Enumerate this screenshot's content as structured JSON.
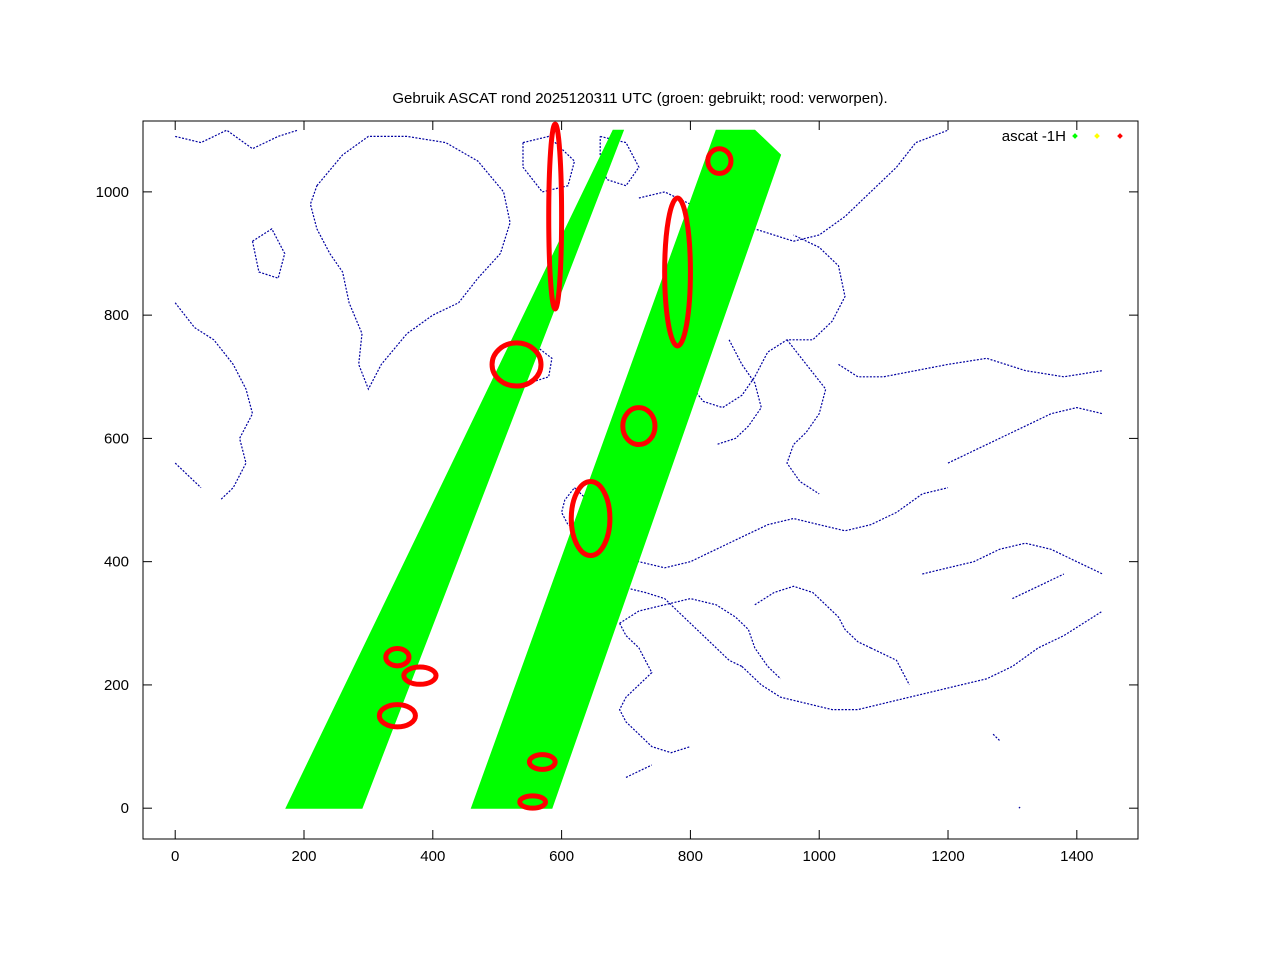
{
  "chart_data": {
    "type": "scatter",
    "title": "Gebruik ASCAT rond 2025120311 UTC (groen: gebruikt; rood: verworpen).",
    "xlabel": "",
    "ylabel": "",
    "xlim": [
      -50,
      1495
    ],
    "ylim": [
      -50,
      1115
    ],
    "x_ticks": [
      0,
      200,
      400,
      600,
      800,
      1000,
      1200,
      1400
    ],
    "y_ticks": [
      0,
      200,
      400,
      600,
      800,
      1000
    ],
    "grid": false,
    "legend_position": "top-right",
    "legend": {
      "label": "ascat -1H"
    },
    "colors": {
      "used": "#00ff00",
      "flagged": "#ffff00",
      "rejected": "#ff0000",
      "coast": "#0000a0",
      "axis": "#000000"
    },
    "series": [
      {
        "name": "ascat -1H",
        "role": "used",
        "swaths": [
          {
            "corners": [
              [
                172,
                0
              ],
              [
                290,
                0
              ],
              [
                696,
                1100
              ],
              [
                680,
                1100
              ]
            ]
          },
          {
            "corners": [
              [
                460,
                0
              ],
              [
                585,
                0
              ],
              [
                940,
                1060
              ],
              [
                900,
                1100
              ],
              [
                840,
                1100
              ]
            ]
          }
        ]
      },
      {
        "role": "flagged",
        "points": []
      },
      {
        "role": "rejected",
        "clusters": [
          {
            "cx": 590,
            "cy": 960,
            "rx": 10,
            "ry": 150
          },
          {
            "cx": 530,
            "cy": 720,
            "rx": 38,
            "ry": 35
          },
          {
            "cx": 345,
            "cy": 245,
            "rx": 18,
            "ry": 14
          },
          {
            "cx": 380,
            "cy": 215,
            "rx": 25,
            "ry": 14
          },
          {
            "cx": 345,
            "cy": 150,
            "rx": 28,
            "ry": 18
          },
          {
            "cx": 570,
            "cy": 75,
            "rx": 20,
            "ry": 12
          },
          {
            "cx": 555,
            "cy": 10,
            "rx": 20,
            "ry": 10
          },
          {
            "cx": 720,
            "cy": 620,
            "rx": 25,
            "ry": 30
          },
          {
            "cx": 645,
            "cy": 470,
            "rx": 30,
            "ry": 60
          },
          {
            "cx": 780,
            "cy": 870,
            "rx": 20,
            "ry": 120
          },
          {
            "cx": 845,
            "cy": 1050,
            "rx": 18,
            "ry": 20
          }
        ]
      }
    ],
    "coastlines": [
      [
        [
          0,
          1090
        ],
        [
          40,
          1080
        ],
        [
          80,
          1100
        ],
        [
          120,
          1070
        ],
        [
          160,
          1090
        ],
        [
          190,
          1100
        ]
      ],
      [
        [
          0,
          820
        ],
        [
          30,
          780
        ],
        [
          60,
          760
        ],
        [
          90,
          720
        ],
        [
          110,
          680
        ],
        [
          120,
          640
        ],
        [
          100,
          600
        ],
        [
          110,
          560
        ],
        [
          90,
          520
        ],
        [
          70,
          500
        ]
      ],
      [
        [
          0,
          560
        ],
        [
          20,
          540
        ],
        [
          40,
          520
        ]
      ],
      [
        [
          220,
          1010
        ],
        [
          260,
          1060
        ],
        [
          300,
          1090
        ],
        [
          360,
          1090
        ],
        [
          420,
          1080
        ],
        [
          470,
          1050
        ],
        [
          510,
          1000
        ],
        [
          520,
          950
        ],
        [
          505,
          900
        ],
        [
          470,
          860
        ],
        [
          440,
          820
        ],
        [
          400,
          800
        ],
        [
          360,
          770
        ],
        [
          320,
          720
        ],
        [
          300,
          680
        ],
        [
          285,
          720
        ],
        [
          290,
          770
        ],
        [
          270,
          820
        ],
        [
          260,
          870
        ],
        [
          240,
          900
        ],
        [
          220,
          940
        ],
        [
          210,
          980
        ],
        [
          220,
          1010
        ]
      ],
      [
        [
          120,
          920
        ],
        [
          150,
          940
        ],
        [
          170,
          900
        ],
        [
          160,
          860
        ],
        [
          130,
          870
        ],
        [
          120,
          920
        ]
      ],
      [
        [
          540,
          1080
        ],
        [
          580,
          1090
        ],
        [
          620,
          1050
        ],
        [
          610,
          1010
        ],
        [
          570,
          1000
        ],
        [
          540,
          1040
        ],
        [
          540,
          1080
        ]
      ],
      [
        [
          660,
          1090
        ],
        [
          700,
          1080
        ],
        [
          720,
          1040
        ],
        [
          700,
          1010
        ],
        [
          670,
          1020
        ],
        [
          660,
          1060
        ],
        [
          660,
          1090
        ]
      ],
      [
        [
          505,
          720
        ],
        [
          520,
          745
        ],
        [
          560,
          750
        ],
        [
          585,
          730
        ],
        [
          580,
          700
        ],
        [
          550,
          690
        ],
        [
          515,
          700
        ],
        [
          505,
          720
        ]
      ],
      [
        [
          720,
          990
        ],
        [
          760,
          1000
        ],
        [
          800,
          980
        ],
        [
          850,
          960
        ],
        [
          900,
          940
        ],
        [
          960,
          920
        ],
        [
          1000,
          930
        ],
        [
          1040,
          960
        ],
        [
          1080,
          1000
        ],
        [
          1120,
          1040
        ],
        [
          1150,
          1080
        ],
        [
          1200,
          1100
        ]
      ],
      [
        [
          780,
          900
        ],
        [
          800,
          860
        ],
        [
          790,
          820
        ],
        [
          780,
          780
        ],
        [
          775,
          740
        ],
        [
          790,
          700
        ],
        [
          820,
          660
        ],
        [
          850,
          650
        ],
        [
          880,
          670
        ],
        [
          900,
          700
        ],
        [
          920,
          740
        ],
        [
          950,
          760
        ],
        [
          990,
          760
        ],
        [
          1020,
          790
        ],
        [
          1040,
          830
        ],
        [
          1030,
          880
        ],
        [
          1000,
          910
        ],
        [
          960,
          930
        ]
      ],
      [
        [
          860,
          760
        ],
        [
          880,
          720
        ],
        [
          900,
          690
        ],
        [
          910,
          650
        ],
        [
          890,
          620
        ],
        [
          870,
          600
        ],
        [
          840,
          590
        ]
      ],
      [
        [
          950,
          760
        ],
        [
          980,
          720
        ],
        [
          1010,
          680
        ],
        [
          1000,
          640
        ],
        [
          980,
          610
        ],
        [
          960,
          590
        ],
        [
          950,
          560
        ],
        [
          970,
          530
        ],
        [
          1000,
          510
        ]
      ],
      [
        [
          1030,
          720
        ],
        [
          1060,
          700
        ],
        [
          1100,
          700
        ],
        [
          1150,
          710
        ],
        [
          1200,
          720
        ],
        [
          1260,
          730
        ],
        [
          1320,
          710
        ],
        [
          1380,
          700
        ],
        [
          1440,
          710
        ]
      ],
      [
        [
          750,
          620
        ],
        [
          745,
          590
        ],
        [
          730,
          560
        ],
        [
          720,
          520
        ],
        [
          715,
          490
        ],
        [
          700,
          470
        ],
        [
          690,
          455
        ]
      ],
      [
        [
          690,
          455
        ],
        [
          700,
          420
        ],
        [
          720,
          400
        ],
        [
          760,
          390
        ],
        [
          800,
          400
        ],
        [
          840,
          420
        ],
        [
          880,
          440
        ],
        [
          920,
          460
        ],
        [
          960,
          470
        ],
        [
          1000,
          460
        ],
        [
          1040,
          450
        ],
        [
          1080,
          460
        ],
        [
          1120,
          480
        ],
        [
          1160,
          510
        ],
        [
          1200,
          520
        ]
      ],
      [
        [
          660,
          560
        ],
        [
          690,
          545
        ],
        [
          700,
          520
        ],
        [
          690,
          500
        ],
        [
          670,
          480
        ],
        [
          650,
          470
        ],
        [
          640,
          490
        ],
        [
          650,
          520
        ],
        [
          660,
          560
        ]
      ],
      [
        [
          620,
          520
        ],
        [
          640,
          500
        ],
        [
          650,
          470
        ],
        [
          630,
          450
        ],
        [
          610,
          460
        ],
        [
          600,
          480
        ],
        [
          605,
          500
        ],
        [
          620,
          520
        ]
      ],
      [
        [
          690,
          455
        ],
        [
          680,
          420
        ],
        [
          675,
          390
        ],
        [
          690,
          360
        ],
        [
          730,
          350
        ],
        [
          760,
          340
        ],
        [
          780,
          320
        ],
        [
          800,
          300
        ],
        [
          820,
          280
        ],
        [
          840,
          260
        ],
        [
          860,
          240
        ],
        [
          880,
          230
        ]
      ],
      [
        [
          690,
          300
        ],
        [
          700,
          280
        ],
        [
          720,
          260
        ],
        [
          730,
          240
        ],
        [
          740,
          220
        ],
        [
          720,
          200
        ],
        [
          700,
          180
        ],
        [
          690,
          160
        ],
        [
          700,
          140
        ],
        [
          720,
          120
        ],
        [
          740,
          100
        ],
        [
          770,
          90
        ],
        [
          800,
          100
        ]
      ],
      [
        [
          690,
          300
        ],
        [
          720,
          320
        ],
        [
          760,
          330
        ],
        [
          800,
          340
        ],
        [
          840,
          330
        ],
        [
          870,
          310
        ],
        [
          890,
          290
        ],
        [
          900,
          260
        ],
        [
          920,
          230
        ],
        [
          940,
          210
        ]
      ],
      [
        [
          880,
          230
        ],
        [
          910,
          200
        ],
        [
          940,
          180
        ],
        [
          980,
          170
        ],
        [
          1020,
          160
        ],
        [
          1060,
          160
        ],
        [
          1100,
          170
        ],
        [
          1140,
          180
        ],
        [
          1180,
          190
        ],
        [
          1220,
          200
        ],
        [
          1260,
          210
        ],
        [
          1300,
          230
        ],
        [
          1340,
          260
        ],
        [
          1380,
          280
        ],
        [
          1410,
          300
        ],
        [
          1440,
          320
        ]
      ],
      [
        [
          900,
          330
        ],
        [
          930,
          350
        ],
        [
          960,
          360
        ],
        [
          990,
          350
        ],
        [
          1010,
          330
        ],
        [
          1030,
          310
        ],
        [
          1040,
          290
        ],
        [
          1060,
          270
        ],
        [
          1080,
          260
        ]
      ],
      [
        [
          1080,
          260
        ],
        [
          1100,
          250
        ],
        [
          1120,
          240
        ],
        [
          1130,
          220
        ],
        [
          1140,
          200
        ]
      ],
      [
        [
          1160,
          380
        ],
        [
          1200,
          390
        ],
        [
          1240,
          400
        ],
        [
          1280,
          420
        ],
        [
          1320,
          430
        ],
        [
          1360,
          420
        ],
        [
          1400,
          400
        ],
        [
          1440,
          380
        ]
      ],
      [
        [
          1200,
          560
        ],
        [
          1240,
          580
        ],
        [
          1280,
          600
        ],
        [
          1320,
          620
        ],
        [
          1360,
          640
        ],
        [
          1400,
          650
        ],
        [
          1440,
          640
        ]
      ],
      [
        [
          1300,
          340
        ],
        [
          1340,
          360
        ],
        [
          1380,
          380
        ]
      ],
      [
        [
          700,
          50
        ],
        [
          720,
          60
        ],
        [
          740,
          70
        ]
      ],
      [
        [
          1270,
          120
        ],
        [
          1280,
          110
        ]
      ],
      [
        [
          1310,
          0
        ],
        [
          1312,
          2
        ]
      ]
    ]
  }
}
